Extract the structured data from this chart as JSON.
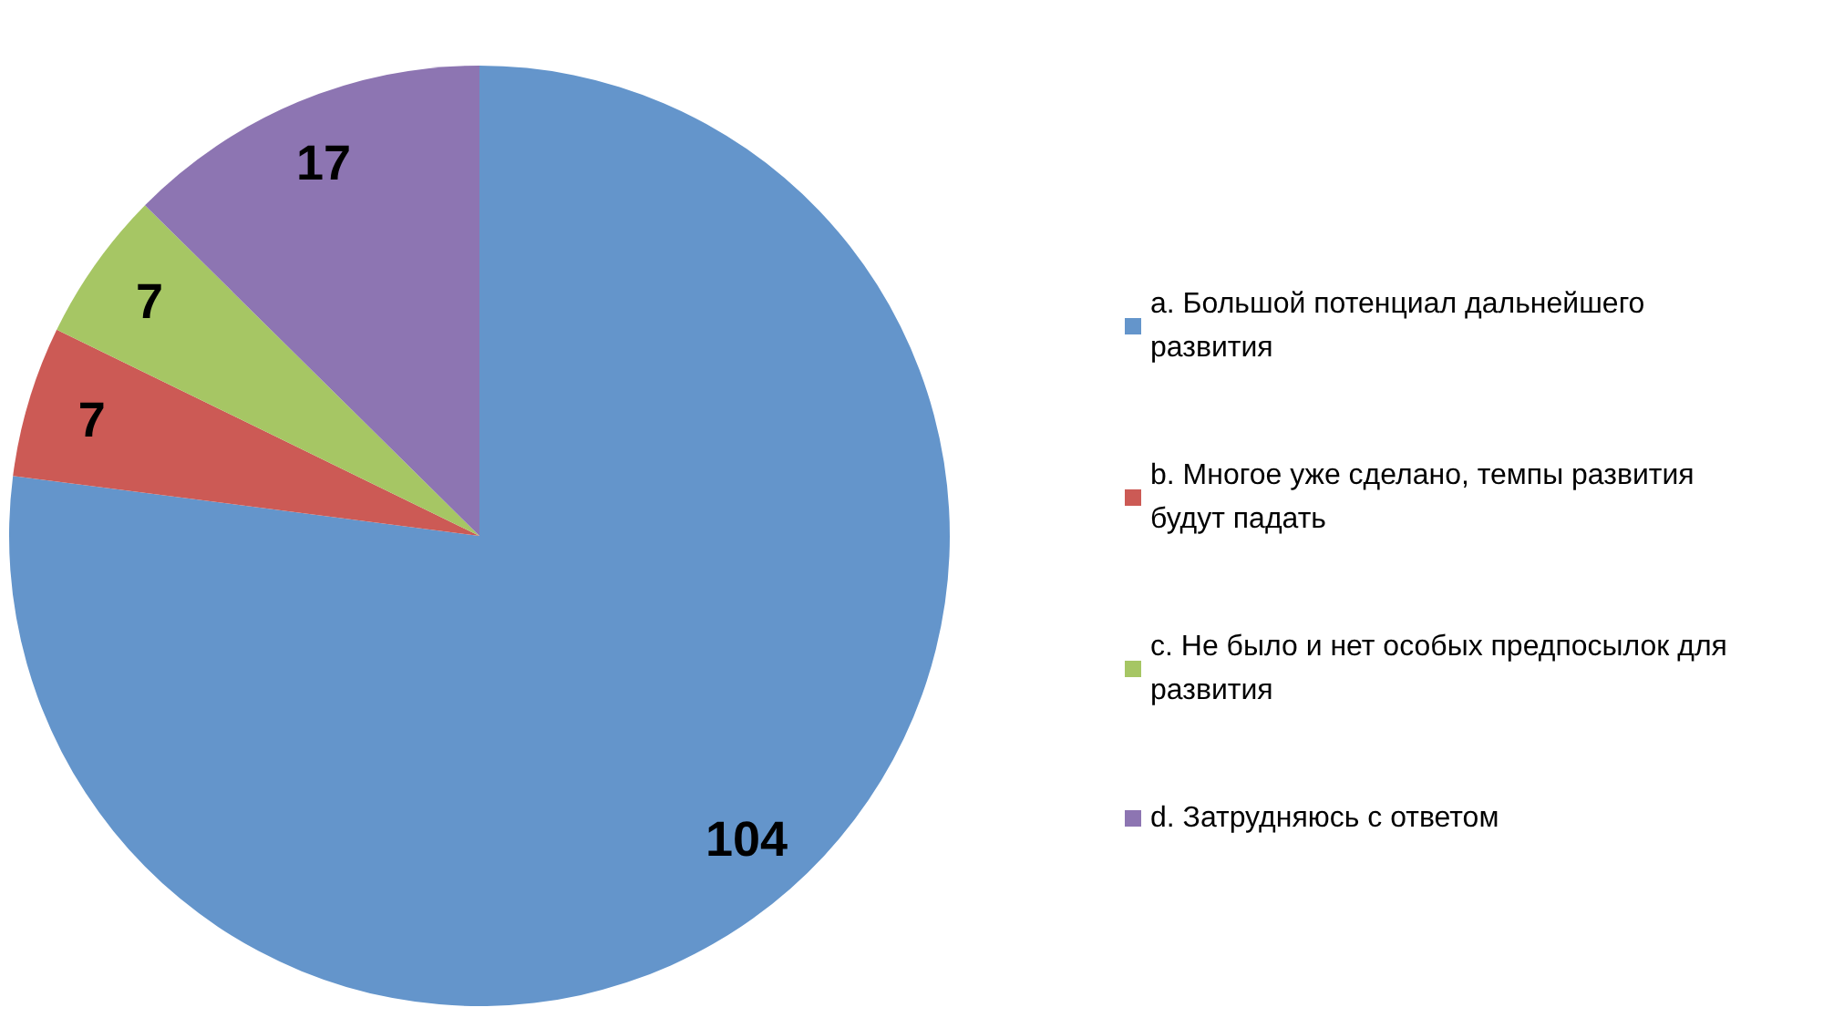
{
  "chart_data": {
    "type": "pie",
    "categories": [
      "a. Большой потенциал дальнейшего развития",
      "b. Многое уже сделано, темпы развития будут падать",
      "c. Не было и нет особых предпосылок для развития",
      "d. Затрудняюсь с ответом"
    ],
    "values": [
      104,
      7,
      7,
      17
    ],
    "colors": [
      "#6495cb",
      "#cc5a55",
      "#a6c664",
      "#8d75b2"
    ],
    "data_labels": true,
    "legend": "right"
  }
}
